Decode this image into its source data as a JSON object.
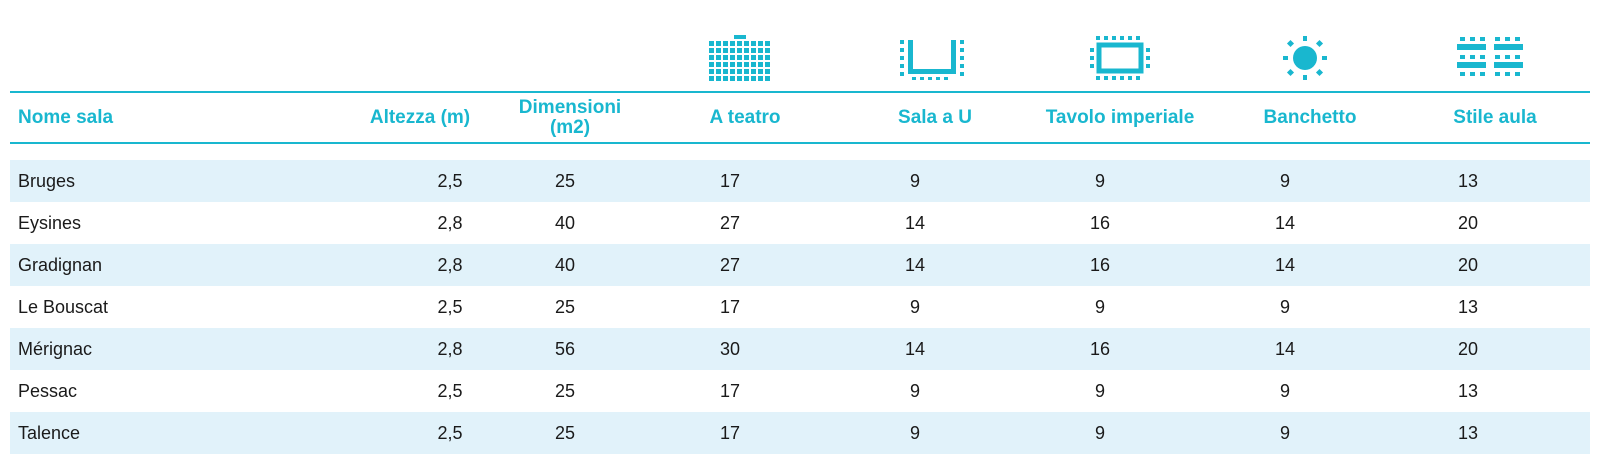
{
  "colors": {
    "accent": "#19b7cf",
    "row_shade": "#e1f2fa",
    "text": "#1a1a1a"
  },
  "icons": [
    {
      "column": "a_teatro",
      "name": "theatre-layout-icon"
    },
    {
      "column": "sala_u",
      "name": "u-shape-layout-icon"
    },
    {
      "column": "tavolo_imperiale",
      "name": "boardroom-layout-icon"
    },
    {
      "column": "banchetto",
      "name": "banquet-layout-icon"
    },
    {
      "column": "stile_aula",
      "name": "classroom-layout-icon"
    }
  ],
  "headers": {
    "nome": "Nome sala",
    "altezza": "Altezza (m)",
    "dimensioni": "Dimensioni (m2)",
    "a_teatro": "A teatro",
    "sala_u": "Sala a U",
    "tavolo_imperiale": "Tavolo imperiale",
    "banchetto": "Banchetto",
    "stile_aula": "Stile aula"
  },
  "rows": [
    {
      "nome": "Bruges",
      "altezza": "2,5",
      "dimensioni": "25",
      "a_teatro": "17",
      "sala_u": "9",
      "tavolo_imperiale": "9",
      "banchetto": "9",
      "stile_aula": "13"
    },
    {
      "nome": "Eysines",
      "altezza": "2,8",
      "dimensioni": "40",
      "a_teatro": "27",
      "sala_u": "14",
      "tavolo_imperiale": "16",
      "banchetto": "14",
      "stile_aula": "20"
    },
    {
      "nome": "Gradignan",
      "altezza": "2,8",
      "dimensioni": "40",
      "a_teatro": "27",
      "sala_u": "14",
      "tavolo_imperiale": "16",
      "banchetto": "14",
      "stile_aula": "20"
    },
    {
      "nome": "Le Bouscat",
      "altezza": "2,5",
      "dimensioni": "25",
      "a_teatro": "17",
      "sala_u": "9",
      "tavolo_imperiale": "9",
      "banchetto": "9",
      "stile_aula": "13"
    },
    {
      "nome": "Mérignac",
      "altezza": "2,8",
      "dimensioni": "56",
      "a_teatro": "30",
      "sala_u": "14",
      "tavolo_imperiale": "16",
      "banchetto": "14",
      "stile_aula": "20"
    },
    {
      "nome": "Pessac",
      "altezza": "2,5",
      "dimensioni": "25",
      "a_teatro": "17",
      "sala_u": "9",
      "tavolo_imperiale": "9",
      "banchetto": "9",
      "stile_aula": "13"
    },
    {
      "nome": "Talence",
      "altezza": "2,5",
      "dimensioni": "25",
      "a_teatro": "17",
      "sala_u": "9",
      "tavolo_imperiale": "9",
      "banchetto": "9",
      "stile_aula": "13"
    }
  ]
}
